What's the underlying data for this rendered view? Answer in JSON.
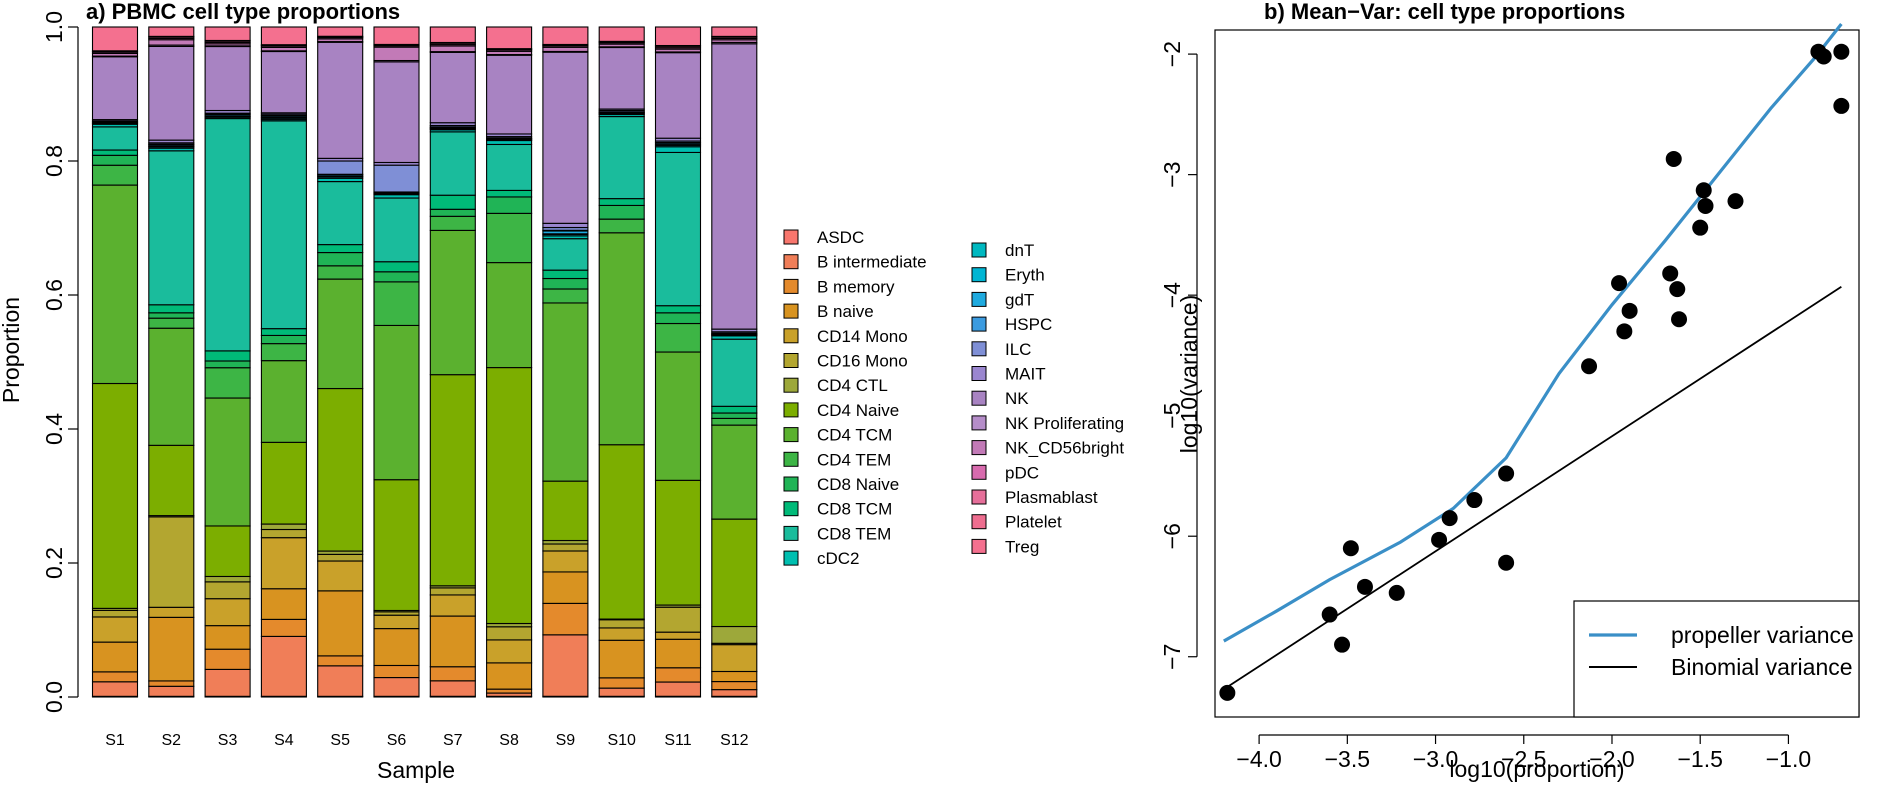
{
  "chart_data": [
    {
      "type": "bar",
      "stacked": true,
      "title": "a) PBMC cell type proportions",
      "xlabel": "Sample",
      "ylabel": "Proportion",
      "ylim": [
        0,
        1
      ],
      "yticks": [
        "0.0",
        "0.2",
        "0.4",
        "0.6",
        "0.8",
        "1.0"
      ],
      "categories": [
        "S1",
        "S2",
        "S3",
        "S4",
        "S5",
        "S6",
        "S7",
        "S8",
        "S9",
        "S10",
        "S11",
        "S12"
      ],
      "series": [
        {
          "name": "ASDC",
          "color": "#F8766D",
          "values": [
            0.001,
            0.001,
            0.001,
            0.001,
            0.001,
            0.001,
            0.001,
            0.001,
            0.001,
            0.001,
            0.001,
            0.001
          ]
        },
        {
          "name": "B intermediate",
          "color": "#F07E58",
          "values": [
            0.022,
            0.015,
            0.04,
            0.088,
            0.046,
            0.028,
            0.022,
            0.005,
            0.088,
            0.012,
            0.02,
            0.01
          ]
        },
        {
          "name": "B memory",
          "color": "#E48A2C",
          "values": [
            0.015,
            0.008,
            0.03,
            0.025,
            0.015,
            0.018,
            0.02,
            0.006,
            0.045,
            0.015,
            0.02,
            0.012
          ]
        },
        {
          "name": "B naive",
          "color": "#D89320",
          "values": [
            0.045,
            0.095,
            0.035,
            0.045,
            0.098,
            0.055,
            0.072,
            0.04,
            0.045,
            0.055,
            0.04,
            0.015
          ]
        },
        {
          "name": "CD14 Mono",
          "color": "#C9A12A",
          "values": [
            0.038,
            0.015,
            0.04,
            0.075,
            0.045,
            0.02,
            0.03,
            0.035,
            0.03,
            0.018,
            0.01,
            0.04
          ]
        },
        {
          "name": "CD16 Mono",
          "color": "#B3A630",
          "values": [
            0.01,
            0.135,
            0.025,
            0.012,
            0.01,
            0.005,
            0.01,
            0.02,
            0.01,
            0.012,
            0.035,
            0.002
          ]
        },
        {
          "name": "CD4 CTL",
          "color": "#9DA83A",
          "values": [
            0.003,
            0.002,
            0.008,
            0.008,
            0.005,
            0.002,
            0.003,
            0.005,
            0.005,
            0.001,
            0.003,
            0.025
          ]
        },
        {
          "name": "CD4 Naive",
          "color": "#7CAE00",
          "values": [
            0.34,
            0.105,
            0.075,
            0.12,
            0.245,
            0.195,
            0.3,
            0.39,
            0.085,
            0.255,
            0.175,
            0.16
          ]
        },
        {
          "name": "CD4 TCM",
          "color": "#5BB12F",
          "values": [
            0.3,
            0.175,
            0.19,
            0.12,
            0.165,
            0.23,
            0.205,
            0.16,
            0.255,
            0.31,
            0.18,
            0.14
          ]
        },
        {
          "name": "CD4 TEM",
          "color": "#3DB545",
          "values": [
            0.03,
            0.015,
            0.045,
            0.025,
            0.02,
            0.065,
            0.02,
            0.075,
            0.02,
            0.02,
            0.04,
            0.01
          ]
        },
        {
          "name": "CD8 Naive",
          "color": "#20B456",
          "values": [
            0.015,
            0.008,
            0.01,
            0.012,
            0.02,
            0.015,
            0.01,
            0.025,
            0.015,
            0.02,
            0.015,
            0.008
          ]
        },
        {
          "name": "CD8 TCM",
          "color": "#00BA78",
          "values": [
            0.008,
            0.012,
            0.015,
            0.01,
            0.012,
            0.015,
            0.02,
            0.01,
            0.012,
            0.01,
            0.01,
            0.01
          ]
        },
        {
          "name": "CD8 TEM",
          "color": "#1ABC9C",
          "values": [
            0.035,
            0.23,
            0.345,
            0.305,
            0.095,
            0.095,
            0.09,
            0.07,
            0.045,
            0.12,
            0.215,
            0.1
          ]
        },
        {
          "name": "cDC2",
          "color": "#00BFB0",
          "values": [
            0.004,
            0.004,
            0.002,
            0.002,
            0.005,
            0.005,
            0.003,
            0.006,
            0.004,
            0.003,
            0.008,
            0.005
          ]
        },
        {
          "name": "dnT",
          "color": "#00B8C0",
          "values": [
            0.001,
            0.002,
            0.001,
            0.002,
            0.002,
            0.001,
            0.001,
            0.001,
            0.002,
            0.001,
            0.002,
            0.001
          ]
        },
        {
          "name": "Eryth",
          "color": "#00B5D3",
          "values": [
            0.001,
            0.001,
            0.001,
            0.001,
            0.001,
            0.001,
            0.001,
            0.001,
            0.001,
            0.001,
            0.001,
            0.001
          ]
        },
        {
          "name": "gdT",
          "color": "#1FAADF",
          "values": [
            0.001,
            0.002,
            0.002,
            0.002,
            0.002,
            0.001,
            0.001,
            0.001,
            0.004,
            0.001,
            0.002,
            0.001
          ]
        },
        {
          "name": "HSPC",
          "color": "#3B9BE0",
          "values": [
            0.001,
            0.001,
            0.001,
            0.001,
            0.001,
            0.001,
            0.001,
            0.001,
            0.001,
            0.001,
            0.001,
            0.001
          ]
        },
        {
          "name": "ILC",
          "color": "#7F8FD6",
          "values": [
            0.001,
            0.002,
            0.001,
            0.002,
            0.02,
            0.04,
            0.002,
            0.002,
            0.004,
            0.002,
            0.002,
            0.002
          ]
        },
        {
          "name": "MAIT",
          "color": "#9A86CF",
          "values": [
            0.002,
            0.004,
            0.004,
            0.002,
            0.004,
            0.004,
            0.004,
            0.004,
            0.006,
            0.002,
            0.004,
            0.004
          ]
        },
        {
          "name": "NK",
          "color": "#A883C2",
          "values": [
            0.095,
            0.14,
            0.095,
            0.09,
            0.175,
            0.15,
            0.1,
            0.12,
            0.245,
            0.09,
            0.12,
            0.425
          ]
        },
        {
          "name": "NK Proliferating",
          "color": "#B58DC9",
          "values": [
            0.001,
            0.002,
            0.001,
            0.001,
            0.001,
            0.002,
            0.001,
            0.001,
            0.001,
            0.001,
            0.001,
            0.002
          ]
        },
        {
          "name": "NK_CD56bright",
          "color": "#C27AB7",
          "values": [
            0.004,
            0.008,
            0.003,
            0.005,
            0.004,
            0.02,
            0.008,
            0.005,
            0.006,
            0.004,
            0.004,
            0.004
          ]
        },
        {
          "name": "pDC",
          "color": "#D86BAE",
          "values": [
            0.002,
            0.002,
            0.002,
            0.002,
            0.002,
            0.002,
            0.002,
            0.002,
            0.002,
            0.002,
            0.002,
            0.002
          ]
        },
        {
          "name": "Plasmablast",
          "color": "#E66F9A",
          "values": [
            0.001,
            0.002,
            0.002,
            0.001,
            0.001,
            0.001,
            0.002,
            0.001,
            0.001,
            0.001,
            0.002,
            0.002
          ]
        },
        {
          "name": "Platelet",
          "color": "#EE6D8F",
          "values": [
            0.001,
            0.001,
            0.001,
            0.001,
            0.001,
            0.001,
            0.001,
            0.001,
            0.001,
            0.001,
            0.001,
            0.001
          ]
        },
        {
          "name": "Treg",
          "color": "#F4708F",
          "values": [
            0.036,
            0.014,
            0.02,
            0.026,
            0.014,
            0.026,
            0.022,
            0.033,
            0.025,
            0.021,
            0.026,
            0.014
          ]
        }
      ]
    },
    {
      "type": "scatter",
      "title": "b) Mean−Var: cell type proportions",
      "xlabel": "log10(proportion)",
      "ylabel": "log10(variance)",
      "xlim": [
        -4.25,
        -0.6
      ],
      "ylim": [
        -7.5,
        -1.8
      ],
      "xticks": [
        -4.0,
        -3.5,
        -3.0,
        -2.5,
        -2.0,
        -1.5,
        -1.0
      ],
      "xtick_labels": [
        "−4.0",
        "−3.5",
        "−3.0",
        "−2.5",
        "−2.0",
        "−1.5",
        "−1.0"
      ],
      "yticks": [
        -7,
        -6,
        -5,
        -4,
        -3,
        -2
      ],
      "ytick_labels": [
        "−7",
        "−6",
        "−5",
        "−4",
        "−3",
        "−2"
      ],
      "points": {
        "x": [
          -4.18,
          -3.6,
          -3.53,
          -3.48,
          -3.4,
          -3.22,
          -2.98,
          -2.92,
          -2.78,
          -2.6,
          -2.6,
          -2.13,
          -1.96,
          -1.93,
          -1.9,
          -1.67,
          -1.65,
          -1.63,
          -1.62,
          -1.5,
          -1.48,
          -1.47,
          -1.3,
          -0.83,
          -0.8,
          -0.7,
          -0.7
        ],
        "y": [
          -7.3,
          -6.65,
          -6.9,
          -6.1,
          -6.42,
          -6.47,
          -6.03,
          -5.85,
          -5.7,
          -5.48,
          -6.22,
          -4.59,
          -3.9,
          -4.3,
          -4.13,
          -3.82,
          -2.87,
          -3.95,
          -4.2,
          -3.44,
          -3.13,
          -3.26,
          -3.22,
          -1.98,
          -2.02,
          -1.98,
          -2.43
        ]
      },
      "series": [
        {
          "name": "propeller variance",
          "color": "#3A8FC7",
          "x": [
            -4.2,
            -3.9,
            -3.6,
            -3.2,
            -2.9,
            -2.6,
            -2.3,
            -2.0,
            -1.7,
            -1.4,
            -1.1,
            -0.85,
            -0.7
          ],
          "y": [
            -6.87,
            -6.62,
            -6.36,
            -6.05,
            -5.77,
            -5.35,
            -4.65,
            -4.08,
            -3.55,
            -3.0,
            -2.45,
            -2.03,
            -1.75
          ]
        },
        {
          "name": "Binomial variance",
          "color": "#000000",
          "x": [
            -4.2,
            -0.7
          ],
          "y": [
            -7.27,
            -3.93
          ]
        }
      ],
      "legend_position": "bottom-right"
    }
  ]
}
